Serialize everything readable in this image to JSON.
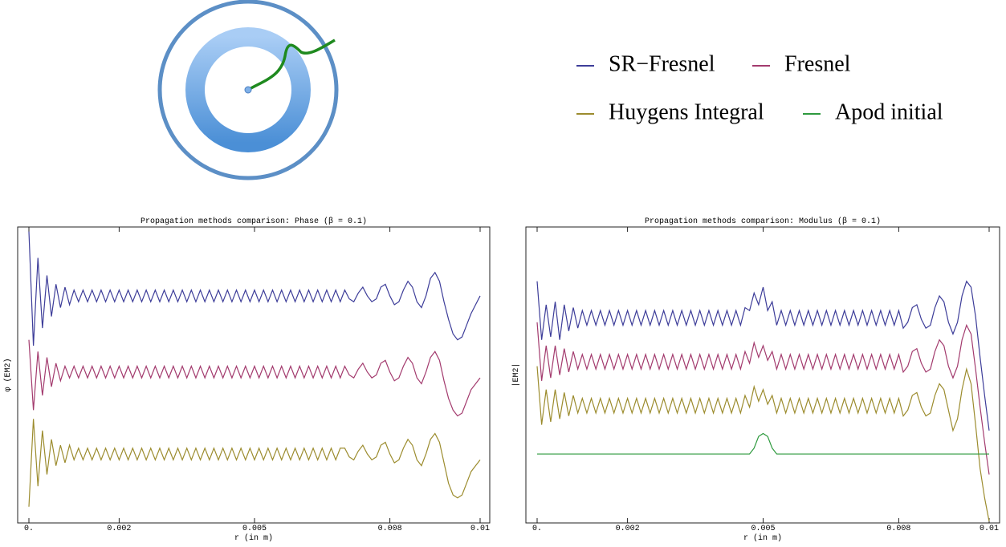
{
  "chart_data": [
    {
      "type": "line",
      "title": "Propagation methods comparison: Phase (β = 0.1)",
      "x_label": "r (in m)",
      "y_label": "φ (EM2)",
      "xlim": [
        0,
        0.01
      ],
      "xticks": [
        {
          "value": 0,
          "label": "0."
        },
        0.002,
        0.005,
        0.008,
        0.01
      ],
      "ylim": [
        0,
        1
      ],
      "x": [
        0,
        0.0001,
        0.0002,
        0.0003,
        0.0004,
        0.0005,
        0.0006,
        0.0007,
        0.0008,
        0.0009,
        0.001,
        0.0011,
        0.0012,
        0.0013,
        0.0014,
        0.0015,
        0.0016,
        0.0017,
        0.0018,
        0.0019,
        0.002,
        0.0021,
        0.0022,
        0.0023,
        0.0024,
        0.0025,
        0.0026,
        0.0027,
        0.0028,
        0.0029,
        0.003,
        0.0031,
        0.0032,
        0.0033,
        0.0034,
        0.0035,
        0.0036,
        0.0037,
        0.0038,
        0.0039,
        0.004,
        0.0041,
        0.0042,
        0.0043,
        0.0044,
        0.0045,
        0.0046,
        0.0047,
        0.0048,
        0.0049,
        0.005,
        0.0051,
        0.0052,
        0.0053,
        0.0054,
        0.0055,
        0.0056,
        0.0057,
        0.0058,
        0.0059,
        0.006,
        0.0061,
        0.0062,
        0.0063,
        0.0064,
        0.0065,
        0.0066,
        0.0067,
        0.0068,
        0.0069,
        0.007,
        0.0071,
        0.0072,
        0.0073,
        0.0074,
        0.0075,
        0.0076,
        0.0077,
        0.0078,
        0.0079,
        0.008,
        0.0081,
        0.0082,
        0.0083,
        0.0084,
        0.0085,
        0.0086,
        0.0087,
        0.0088,
        0.0089,
        0.009,
        0.0091,
        0.0092,
        0.0093,
        0.0094,
        0.0095,
        0.0096,
        0.0097,
        0.0098,
        0.0099,
        0.01
      ],
      "series": [
        {
          "color": "#3d3d99",
          "values": [
            0.99,
            0.6,
            0.9,
            0.66,
            0.84,
            0.7,
            0.81,
            0.73,
            0.8,
            0.74,
            0.79,
            0.75,
            0.79,
            0.75,
            0.79,
            0.75,
            0.79,
            0.75,
            0.79,
            0.75,
            0.79,
            0.75,
            0.79,
            0.75,
            0.79,
            0.75,
            0.79,
            0.75,
            0.79,
            0.75,
            0.79,
            0.75,
            0.79,
            0.75,
            0.79,
            0.75,
            0.79,
            0.75,
            0.79,
            0.75,
            0.79,
            0.75,
            0.79,
            0.75,
            0.79,
            0.75,
            0.79,
            0.75,
            0.79,
            0.75,
            0.79,
            0.75,
            0.79,
            0.75,
            0.79,
            0.75,
            0.79,
            0.75,
            0.79,
            0.75,
            0.79,
            0.75,
            0.79,
            0.75,
            0.79,
            0.75,
            0.79,
            0.75,
            0.79,
            0.75,
            0.79,
            0.76,
            0.75,
            0.78,
            0.8,
            0.77,
            0.75,
            0.76,
            0.8,
            0.81,
            0.77,
            0.74,
            0.75,
            0.79,
            0.82,
            0.8,
            0.75,
            0.73,
            0.77,
            0.83,
            0.85,
            0.82,
            0.75,
            0.69,
            0.64,
            0.62,
            0.63,
            0.67,
            0.71,
            0.74,
            0.77
          ]
        },
        {
          "color": "#a33b6e",
          "values": [
            0.62,
            0.38,
            0.58,
            0.43,
            0.56,
            0.46,
            0.54,
            0.48,
            0.53,
            0.49,
            0.53,
            0.49,
            0.53,
            0.49,
            0.53,
            0.49,
            0.53,
            0.49,
            0.53,
            0.49,
            0.53,
            0.49,
            0.53,
            0.49,
            0.53,
            0.49,
            0.53,
            0.49,
            0.53,
            0.49,
            0.53,
            0.49,
            0.53,
            0.49,
            0.53,
            0.49,
            0.53,
            0.49,
            0.53,
            0.49,
            0.53,
            0.49,
            0.53,
            0.49,
            0.53,
            0.49,
            0.53,
            0.49,
            0.53,
            0.49,
            0.53,
            0.49,
            0.53,
            0.49,
            0.53,
            0.49,
            0.53,
            0.49,
            0.53,
            0.49,
            0.53,
            0.49,
            0.53,
            0.49,
            0.53,
            0.49,
            0.53,
            0.49,
            0.53,
            0.49,
            0.53,
            0.5,
            0.49,
            0.52,
            0.54,
            0.51,
            0.49,
            0.5,
            0.54,
            0.55,
            0.51,
            0.48,
            0.49,
            0.53,
            0.56,
            0.54,
            0.49,
            0.47,
            0.51,
            0.56,
            0.58,
            0.55,
            0.48,
            0.42,
            0.38,
            0.36,
            0.37,
            0.41,
            0.45,
            0.47,
            0.49
          ]
        },
        {
          "color": "#9c8c2e",
          "values": [
            0.05,
            0.35,
            0.12,
            0.31,
            0.16,
            0.28,
            0.19,
            0.26,
            0.2,
            0.26,
            0.21,
            0.25,
            0.21,
            0.25,
            0.21,
            0.25,
            0.21,
            0.25,
            0.21,
            0.25,
            0.21,
            0.25,
            0.21,
            0.25,
            0.21,
            0.25,
            0.21,
            0.25,
            0.21,
            0.25,
            0.21,
            0.25,
            0.21,
            0.25,
            0.21,
            0.25,
            0.21,
            0.25,
            0.21,
            0.25,
            0.21,
            0.25,
            0.21,
            0.25,
            0.21,
            0.25,
            0.21,
            0.25,
            0.21,
            0.25,
            0.21,
            0.25,
            0.21,
            0.25,
            0.21,
            0.25,
            0.21,
            0.25,
            0.21,
            0.25,
            0.21,
            0.25,
            0.21,
            0.25,
            0.21,
            0.25,
            0.21,
            0.25,
            0.21,
            0.25,
            0.25,
            0.22,
            0.21,
            0.24,
            0.26,
            0.23,
            0.21,
            0.22,
            0.26,
            0.27,
            0.23,
            0.2,
            0.21,
            0.25,
            0.28,
            0.26,
            0.21,
            0.19,
            0.23,
            0.28,
            0.3,
            0.27,
            0.2,
            0.13,
            0.09,
            0.08,
            0.09,
            0.13,
            0.17,
            0.19,
            0.21
          ]
        }
      ]
    },
    {
      "type": "line",
      "title": "Propagation methods comparison: Modulus (β = 0.1)",
      "x_label": "r (in m)",
      "y_label": "|EM2|",
      "xlim": [
        0,
        0.01
      ],
      "xticks": [
        {
          "value": 0,
          "label": "0."
        },
        0.002,
        0.005,
        0.008,
        0.01
      ],
      "ylim": [
        0,
        1
      ],
      "x": [
        0,
        0.0001,
        0.0002,
        0.0003,
        0.0004,
        0.0005,
        0.0006,
        0.0007,
        0.0008,
        0.0009,
        0.001,
        0.0011,
        0.0012,
        0.0013,
        0.0014,
        0.0015,
        0.0016,
        0.0017,
        0.0018,
        0.0019,
        0.002,
        0.0021,
        0.0022,
        0.0023,
        0.0024,
        0.0025,
        0.0026,
        0.0027,
        0.0028,
        0.0029,
        0.003,
        0.0031,
        0.0032,
        0.0033,
        0.0034,
        0.0035,
        0.0036,
        0.0037,
        0.0038,
        0.0039,
        0.004,
        0.0041,
        0.0042,
        0.0043,
        0.0044,
        0.0045,
        0.0046,
        0.0047,
        0.0048,
        0.0049,
        0.005,
        0.0051,
        0.0052,
        0.0053,
        0.0054,
        0.0055,
        0.0056,
        0.0057,
        0.0058,
        0.0059,
        0.006,
        0.0061,
        0.0062,
        0.0063,
        0.0064,
        0.0065,
        0.0066,
        0.0067,
        0.0068,
        0.0069,
        0.007,
        0.0071,
        0.0072,
        0.0073,
        0.0074,
        0.0075,
        0.0076,
        0.0077,
        0.0078,
        0.0079,
        0.008,
        0.0081,
        0.0082,
        0.0083,
        0.0084,
        0.0085,
        0.0086,
        0.0087,
        0.0088,
        0.0089,
        0.009,
        0.0091,
        0.0092,
        0.0093,
        0.0094,
        0.0095,
        0.0096,
        0.0097,
        0.0098,
        0.0099,
        0.01
      ],
      "series": [
        {
          "name": "SR−Fresnel",
          "color": "#3d3d99",
          "values": [
            0.82,
            0.62,
            0.74,
            0.63,
            0.75,
            0.62,
            0.74,
            0.65,
            0.73,
            0.66,
            0.72,
            0.67,
            0.72,
            0.67,
            0.72,
            0.67,
            0.72,
            0.67,
            0.72,
            0.67,
            0.72,
            0.67,
            0.72,
            0.67,
            0.72,
            0.67,
            0.72,
            0.67,
            0.72,
            0.67,
            0.72,
            0.67,
            0.72,
            0.67,
            0.72,
            0.67,
            0.72,
            0.67,
            0.72,
            0.67,
            0.72,
            0.67,
            0.72,
            0.67,
            0.72,
            0.67,
            0.73,
            0.72,
            0.78,
            0.74,
            0.8,
            0.72,
            0.75,
            0.67,
            0.72,
            0.67,
            0.72,
            0.67,
            0.72,
            0.67,
            0.72,
            0.67,
            0.72,
            0.67,
            0.72,
            0.67,
            0.72,
            0.67,
            0.72,
            0.67,
            0.72,
            0.67,
            0.72,
            0.67,
            0.72,
            0.67,
            0.72,
            0.67,
            0.72,
            0.67,
            0.72,
            0.66,
            0.68,
            0.73,
            0.74,
            0.69,
            0.66,
            0.67,
            0.73,
            0.77,
            0.75,
            0.68,
            0.64,
            0.68,
            0.77,
            0.82,
            0.8,
            0.7,
            0.56,
            0.43,
            0.31
          ]
        },
        {
          "name": "Fresnel",
          "color": "#a33b6e",
          "values": [
            0.68,
            0.48,
            0.6,
            0.49,
            0.6,
            0.5,
            0.59,
            0.51,
            0.58,
            0.52,
            0.57,
            0.52,
            0.57,
            0.52,
            0.57,
            0.52,
            0.57,
            0.52,
            0.57,
            0.52,
            0.57,
            0.52,
            0.57,
            0.52,
            0.57,
            0.52,
            0.57,
            0.52,
            0.57,
            0.52,
            0.57,
            0.52,
            0.57,
            0.52,
            0.57,
            0.52,
            0.57,
            0.52,
            0.57,
            0.52,
            0.57,
            0.52,
            0.57,
            0.52,
            0.57,
            0.52,
            0.58,
            0.54,
            0.61,
            0.56,
            0.6,
            0.55,
            0.58,
            0.52,
            0.57,
            0.52,
            0.57,
            0.52,
            0.57,
            0.52,
            0.57,
            0.52,
            0.57,
            0.52,
            0.57,
            0.52,
            0.57,
            0.52,
            0.57,
            0.52,
            0.57,
            0.52,
            0.57,
            0.52,
            0.57,
            0.52,
            0.57,
            0.52,
            0.57,
            0.52,
            0.57,
            0.51,
            0.53,
            0.58,
            0.59,
            0.54,
            0.51,
            0.52,
            0.58,
            0.62,
            0.6,
            0.53,
            0.49,
            0.53,
            0.62,
            0.67,
            0.64,
            0.52,
            0.39,
            0.27,
            0.16
          ]
        },
        {
          "name": "Huygens Integral",
          "color": "#9c8c2e",
          "values": [
            0.53,
            0.33,
            0.45,
            0.34,
            0.45,
            0.35,
            0.44,
            0.36,
            0.43,
            0.37,
            0.42,
            0.37,
            0.42,
            0.37,
            0.42,
            0.37,
            0.42,
            0.37,
            0.42,
            0.37,
            0.42,
            0.37,
            0.42,
            0.37,
            0.42,
            0.37,
            0.42,
            0.37,
            0.42,
            0.37,
            0.42,
            0.37,
            0.42,
            0.37,
            0.42,
            0.37,
            0.42,
            0.37,
            0.42,
            0.37,
            0.42,
            0.37,
            0.42,
            0.37,
            0.42,
            0.37,
            0.43,
            0.39,
            0.46,
            0.41,
            0.45,
            0.4,
            0.43,
            0.37,
            0.42,
            0.37,
            0.42,
            0.37,
            0.42,
            0.37,
            0.42,
            0.37,
            0.42,
            0.37,
            0.42,
            0.37,
            0.42,
            0.37,
            0.42,
            0.37,
            0.42,
            0.37,
            0.42,
            0.37,
            0.42,
            0.37,
            0.42,
            0.37,
            0.42,
            0.37,
            0.42,
            0.36,
            0.38,
            0.43,
            0.44,
            0.39,
            0.36,
            0.37,
            0.43,
            0.47,
            0.45,
            0.38,
            0.31,
            0.35,
            0.45,
            0.52,
            0.47,
            0.33,
            0.18,
            0.08,
            0.0
          ]
        },
        {
          "name": "Apod initial",
          "color": "#2e9a3e",
          "values": [
            0.23,
            0.23,
            0.23,
            0.23,
            0.23,
            0.23,
            0.23,
            0.23,
            0.23,
            0.23,
            0.23,
            0.23,
            0.23,
            0.23,
            0.23,
            0.23,
            0.23,
            0.23,
            0.23,
            0.23,
            0.23,
            0.23,
            0.23,
            0.23,
            0.23,
            0.23,
            0.23,
            0.23,
            0.23,
            0.23,
            0.23,
            0.23,
            0.23,
            0.23,
            0.23,
            0.23,
            0.23,
            0.23,
            0.23,
            0.23,
            0.23,
            0.23,
            0.23,
            0.23,
            0.23,
            0.23,
            0.23,
            0.23,
            0.25,
            0.29,
            0.3,
            0.29,
            0.25,
            0.23,
            0.23,
            0.23,
            0.23,
            0.23,
            0.23,
            0.23,
            0.23,
            0.23,
            0.23,
            0.23,
            0.23,
            0.23,
            0.23,
            0.23,
            0.23,
            0.23,
            0.23,
            0.23,
            0.23,
            0.23,
            0.23,
            0.23,
            0.23,
            0.23,
            0.23,
            0.23,
            0.23,
            0.23,
            0.23,
            0.23,
            0.23,
            0.23,
            0.23,
            0.23,
            0.23,
            0.23,
            0.23,
            0.23,
            0.23,
            0.23,
            0.23,
            0.23,
            0.23,
            0.23,
            0.23,
            0.23,
            0.23
          ]
        }
      ]
    }
  ]
}
